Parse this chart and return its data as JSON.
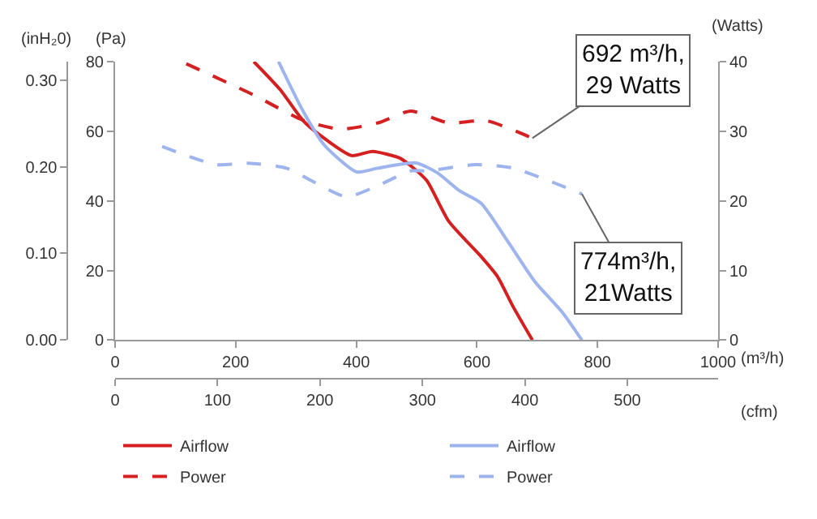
{
  "chart_data": {
    "type": "line",
    "xlabel": "(m³/h)",
    "ylabel": "(Pa)",
    "y2label": "(Watts)",
    "y3label": "(inH₂0)",
    "x2label": "(cfm)",
    "xlim": [
      0,
      1000
    ],
    "xticks": [
      0,
      200,
      400,
      600,
      800,
      1000
    ],
    "x2lim": [
      0,
      588.6
    ],
    "x2ticks": [
      0,
      100,
      200,
      300,
      400,
      500
    ],
    "ylim": [
      0,
      80
    ],
    "yticks": [
      0,
      20,
      40,
      60,
      80
    ],
    "y2lim": [
      0,
      40
    ],
    "y2ticks": [
      0,
      10,
      20,
      30,
      40
    ],
    "y3lim": [
      0,
      0.3212
    ],
    "y3ticks": [
      {
        "value": 0,
        "label": "0.00"
      },
      {
        "value": 0.1,
        "label": "0.10"
      },
      {
        "value": 0.2,
        "label": "0.20"
      },
      {
        "value": 0.3,
        "label": "0.30"
      }
    ],
    "grid": false,
    "legend": "bottom",
    "marker": "none",
    "series": [
      {
        "name": "Airflow",
        "color": "#d42020",
        "line_style": "solid",
        "x": [
          230,
          274,
          311,
          338,
          392,
          427,
          472,
          490,
          517,
          553,
          607,
          634,
          660,
          692
        ],
        "values": [
          80,
          71.9,
          63.2,
          59.1,
          53,
          54.2,
          52.3,
          50.1,
          45.8,
          34.2,
          24,
          18.3,
          9.6,
          0
        ]
      },
      {
        "name": "Airflow",
        "color": "#9db4ee",
        "line_style": "solid",
        "x": [
          271,
          311,
          347,
          401,
          436,
          499,
          535,
          571,
          607,
          651,
          696,
          741,
          774
        ],
        "values": [
          80,
          66,
          56,
          48.3,
          49.4,
          50.9,
          48,
          42.9,
          39.3,
          28.4,
          16.8,
          8.1,
          0
        ]
      },
      {
        "name": "Power",
        "color": "#d42020",
        "line_style": "dashed",
        "axis": "y2",
        "x": [
          118,
          230,
          311,
          374,
          436,
          490,
          553,
          616,
          692
        ],
        "values": [
          39.7,
          35.2,
          31.6,
          30.3,
          31.2,
          32.9,
          31.2,
          31.5,
          29
        ]
      },
      {
        "name": "Power",
        "color": "#9db4ee",
        "line_style": "dashed",
        "axis": "y2",
        "x": [
          78,
          167,
          221,
          284,
          383,
          436,
          490,
          517,
          598,
          660,
          774
        ],
        "values": [
          27.8,
          25.2,
          25.4,
          24.7,
          20.6,
          22.2,
          24.3,
          24.3,
          25.2,
          24.7,
          21
        ]
      }
    ],
    "annotations": [
      {
        "text": "692 m³/h,\n29 Watts",
        "x": 692,
        "y": 58
      },
      {
        "text": "774m³/h,\n21Watts",
        "x": 774,
        "y": 42
      }
    ]
  }
}
